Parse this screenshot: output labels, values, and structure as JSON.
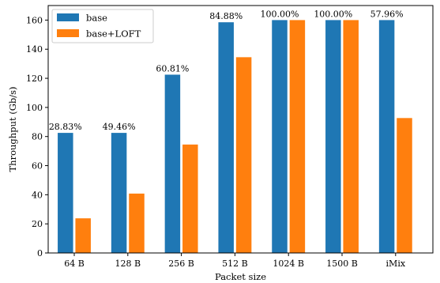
{
  "chart_data": {
    "type": "bar",
    "title": "",
    "xlabel": "Packet size",
    "ylabel": "Throughput (Gb/s)",
    "ylim": [
      0,
      170
    ],
    "yticks": [
      0,
      20,
      40,
      60,
      80,
      100,
      120,
      140,
      160
    ],
    "categories": [
      "64 B",
      "128 B",
      "256 B",
      "512 B",
      "1024 B",
      "1500 B",
      "iMix"
    ],
    "series": [
      {
        "name": "base",
        "color": "#1f77b4",
        "values": [
          82.5,
          82.5,
          122.5,
          158.5,
          160,
          160,
          160
        ]
      },
      {
        "name": "base+LOFT",
        "color": "#ff7f0e",
        "values": [
          23.8,
          40.8,
          74.5,
          134.5,
          160,
          160,
          92.7
        ]
      }
    ],
    "annotations": [
      "28.83%",
      "49.46%",
      "60.81%",
      "84.88%",
      "100.00%",
      "100.00%",
      "57.96%"
    ],
    "legend": {
      "position": "top-left"
    },
    "grid": false
  }
}
